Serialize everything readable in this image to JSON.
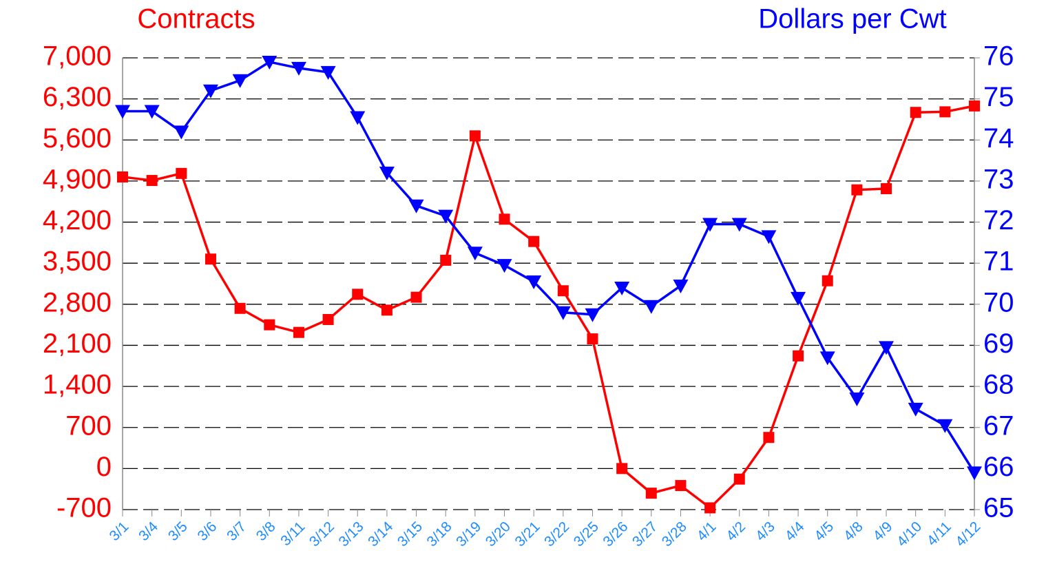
{
  "chart_data": {
    "type": "line",
    "ylabel": "Contracts",
    "y2label": "Dollars per Cwt",
    "categories": [
      "3/1",
      "3/4",
      "3/5",
      "3/6",
      "3/7",
      "3/8",
      "3/11",
      "3/12",
      "3/13",
      "3/14",
      "3/15",
      "3/18",
      "3/19",
      "3/20",
      "3/21",
      "3/22",
      "3/25",
      "3/26",
      "3/27",
      "3/28",
      "4/1",
      "4/2",
      "4/3",
      "4/4",
      "4/5",
      "4/8",
      "4/9",
      "4/10",
      "4/11",
      "4/12"
    ],
    "series": [
      {
        "color": "#ff0000",
        "marker": "square",
        "values": [
          4970,
          4910,
          5030,
          3570,
          2730,
          2450,
          2320,
          2540,
          2970,
          2700,
          2920,
          3550,
          5670,
          4250,
          3870,
          3030,
          2210,
          0,
          -420,
          -290,
          -670,
          -180,
          530,
          1920,
          3200,
          4750,
          4770,
          6070,
          6080,
          6180
        ]
      },
      {
        "color": "#0000ff",
        "marker": "triangle-down",
        "axis": "y2",
        "values": [
          74.7,
          74.7,
          74.2,
          75.2,
          75.45,
          75.9,
          75.75,
          75.65,
          74.55,
          73.2,
          72.4,
          72.15,
          71.25,
          70.95,
          70.55,
          69.8,
          69.75,
          70.4,
          69.95,
          70.45,
          71.95,
          71.95,
          71.65,
          70.15,
          68.7,
          67.7,
          68.95,
          67.45,
          67.05,
          65.9
        ]
      }
    ],
    "ylim": [
      -700,
      7000
    ],
    "yticks": [
      -700,
      0,
      700,
      {
        "value": 1400,
        "label": "1,400"
      },
      {
        "value": 2100,
        "label": "2,100"
      },
      {
        "value": 2800,
        "label": "2,800"
      },
      {
        "value": 3500,
        "label": "3,500"
      },
      {
        "value": 4200,
        "label": "4,200"
      },
      {
        "value": 4900,
        "label": "4,900"
      },
      {
        "value": 5600,
        "label": "5,600"
      },
      {
        "value": 6300,
        "label": "6,300"
      },
      {
        "value": 7000,
        "label": "7,000"
      }
    ],
    "y2lim": [
      65,
      76
    ],
    "y2ticks": [
      65,
      66,
      67,
      68,
      69,
      70,
      71,
      72,
      73,
      74,
      75,
      76
    ],
    "grid": true
  }
}
